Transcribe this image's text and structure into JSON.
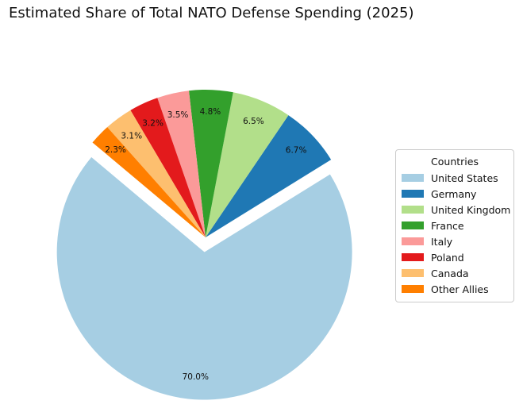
{
  "chart_data": {
    "type": "pie",
    "title": "Estimated Share of Total NATO Defense Spending (2025)",
    "legend_title": "Countries",
    "legend_position": "right",
    "start_angle_deg": 140,
    "direction": "counterclockwise",
    "slices": [
      {
        "label": "United States",
        "value": 70.0,
        "pct_label": "70.0%",
        "color": "#a6cee3",
        "exploded": true
      },
      {
        "label": "Germany",
        "value": 6.7,
        "pct_label": "6.7%",
        "color": "#1f78b4",
        "exploded": false
      },
      {
        "label": "United Kingdom",
        "value": 6.5,
        "pct_label": "6.5%",
        "color": "#b2df8a",
        "exploded": false
      },
      {
        "label": "France",
        "value": 4.8,
        "pct_label": "4.8%",
        "color": "#33a02c",
        "exploded": false
      },
      {
        "label": "Italy",
        "value": 3.5,
        "pct_label": "3.5%",
        "color": "#fb9a99",
        "exploded": false
      },
      {
        "label": "Poland",
        "value": 3.2,
        "pct_label": "3.2%",
        "color": "#e31a1c",
        "exploded": false
      },
      {
        "label": "Canada",
        "value": 3.1,
        "pct_label": "3.1%",
        "color": "#fdbf6f",
        "exploded": false
      },
      {
        "label": "Other Allies",
        "value": 2.3,
        "pct_label": "2.3%",
        "color": "#ff7f00",
        "exploded": false
      }
    ]
  }
}
